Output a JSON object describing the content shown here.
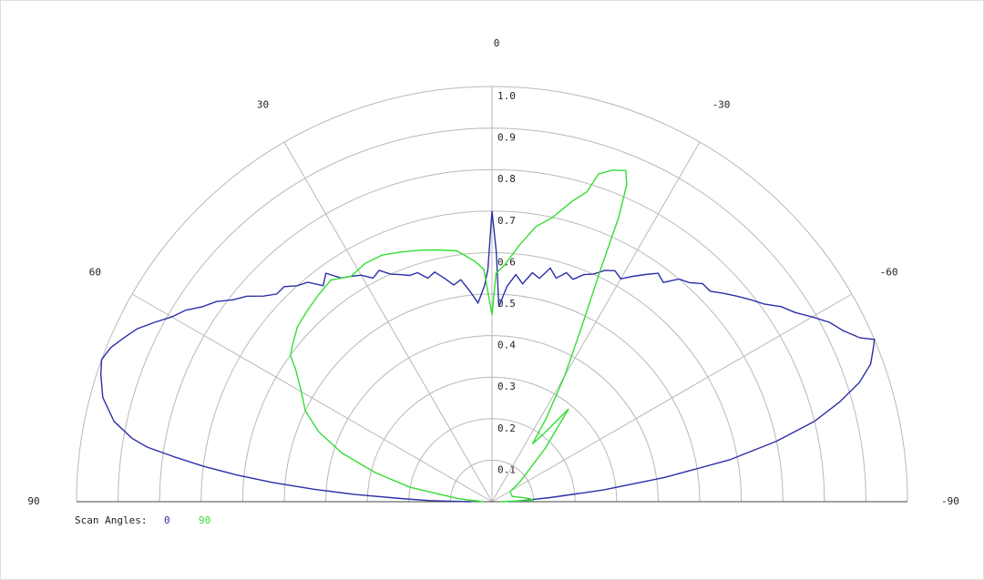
{
  "chart_data": {
    "type": "polar",
    "legend_title": "Scan Angles:",
    "thetaticks": [
      0,
      30,
      -30,
      60,
      -60,
      90,
      -90
    ],
    "rlim": [
      0,
      1
    ],
    "rticks": [
      0.1,
      0.2,
      0.3,
      0.4,
      0.5,
      0.6,
      0.7,
      0.8,
      0.9,
      {
        "value": 1,
        "label": "1.0"
      }
    ],
    "grid": true,
    "series": [
      {
        "name": "0",
        "color": "#2b2fa8",
        "x": [
          90,
          89,
          88,
          87,
          86,
          85,
          84,
          83,
          82,
          81,
          80,
          78,
          75,
          72,
          70,
          68,
          66,
          64,
          62,
          60,
          58,
          56,
          54,
          52,
          50,
          48,
          46,
          44,
          42,
          40,
          38,
          36,
          34,
          32,
          30,
          28,
          26,
          24,
          22,
          20,
          18,
          16,
          14,
          12,
          10,
          8,
          6,
          4,
          2,
          1,
          0,
          -1,
          -2,
          -4,
          -6,
          -8,
          -10,
          -12,
          -14,
          -16,
          -18,
          -20,
          -22,
          -24,
          -26,
          -28,
          -30,
          -32,
          -34,
          -36,
          -38,
          -40,
          -42,
          -44,
          -46,
          -48,
          -50,
          -52,
          -54,
          -56,
          -58,
          -60,
          -62,
          -64,
          -66,
          -67,
          -68,
          -70,
          -72,
          -74,
          -76,
          -78,
          -80,
          -82,
          -84,
          -86,
          -88,
          -90
        ],
        "values": [
          0.05,
          0.15,
          0.22,
          0.33,
          0.43,
          0.53,
          0.62,
          0.7,
          0.77,
          0.84,
          0.88,
          0.93,
          0.97,
          0.99,
          1.0,
          0.99,
          0.97,
          0.95,
          0.92,
          0.89,
          0.87,
          0.84,
          0.82,
          0.79,
          0.77,
          0.74,
          0.72,
          0.72,
          0.7,
          0.69,
          0.66,
          0.68,
          0.65,
          0.64,
          0.63,
          0.61,
          0.62,
          0.6,
          0.59,
          0.58,
          0.58,
          0.56,
          0.57,
          0.55,
          0.53,
          0.54,
          0.51,
          0.48,
          0.52,
          0.56,
          0.7,
          0.6,
          0.47,
          0.52,
          0.55,
          0.53,
          0.56,
          0.55,
          0.58,
          0.56,
          0.58,
          0.57,
          0.59,
          0.6,
          0.62,
          0.63,
          0.62,
          0.64,
          0.66,
          0.68,
          0.67,
          0.7,
          0.71,
          0.73,
          0.73,
          0.75,
          0.77,
          0.79,
          0.81,
          0.84,
          0.86,
          0.89,
          0.92,
          0.94,
          0.97,
          1.0,
          0.99,
          0.97,
          0.93,
          0.87,
          0.8,
          0.7,
          0.58,
          0.42,
          0.27,
          0.14,
          0.07,
          0.04
        ]
      },
      {
        "name": "90",
        "color": "#33dd33",
        "x": [
          90,
          85,
          80,
          76,
          72,
          68,
          64,
          60,
          56,
          54,
          52,
          48,
          44,
          40,
          36,
          32,
          28,
          24,
          20,
          16,
          12,
          8,
          4,
          2,
          0,
          -1,
          -3,
          -6,
          -9,
          -12,
          -15,
          -17,
          -18,
          -20,
          -22,
          -23,
          -24,
          -25,
          -27,
          -30,
          -33,
          -35,
          -37,
          -39.5,
          -45,
          -55,
          -61,
          -75,
          -85,
          -88,
          -90
        ],
        "values": [
          0.02,
          0.08,
          0.2,
          0.29,
          0.38,
          0.45,
          0.5,
          0.53,
          0.57,
          0.6,
          0.61,
          0.63,
          0.64,
          0.65,
          0.66,
          0.64,
          0.65,
          0.65,
          0.64,
          0.63,
          0.62,
          0.61,
          0.58,
          0.56,
          0.45,
          0.55,
          0.57,
          0.62,
          0.67,
          0.7,
          0.75,
          0.78,
          0.83,
          0.85,
          0.86,
          0.83,
          0.75,
          0.62,
          0.48,
          0.35,
          0.24,
          0.17,
          0.2,
          0.29,
          0.18,
          0.08,
          0.05,
          0.05,
          0.09,
          0.1,
          0.02
        ]
      }
    ]
  }
}
